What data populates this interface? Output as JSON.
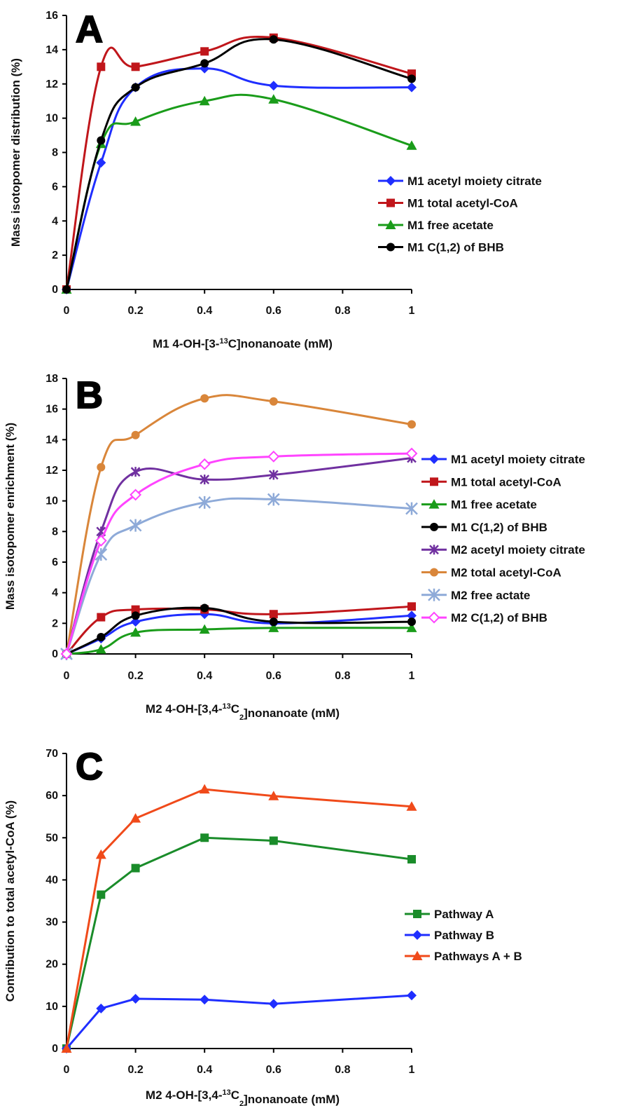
{
  "chart_data": [
    {
      "type": "line",
      "panel_label": "A",
      "xlabel": "M1  4-OH-[3-13C]nonanoate (mM)",
      "xlabel_parts": [
        "M1  4-OH-[3-",
        "13",
        "C]nonanoate (mM)"
      ],
      "ylabel": "Mass isotopomer distribution (%)",
      "xlim": [
        0,
        1
      ],
      "ylim": [
        0,
        16
      ],
      "x_ticks": [
        "0",
        "0.2",
        "0.4",
        "0.6",
        "0.8",
        "1"
      ],
      "y_ticks": [
        "0",
        "2",
        "4",
        "6",
        "8",
        "10",
        "12",
        "14",
        "16"
      ],
      "x": [
        0,
        0.1,
        0.2,
        0.4,
        0.6,
        1
      ],
      "grid": false,
      "legend_position": "right",
      "smooth": true,
      "series": [
        {
          "name": "M1 acetyl moiety citrate",
          "color": "#1f2eff",
          "marker": "diamond",
          "values": [
            0,
            7.4,
            11.8,
            12.9,
            11.9,
            11.8
          ]
        },
        {
          "name": "M1 total acetyl-CoA",
          "color": "#c0161b",
          "marker": "square",
          "values": [
            0,
            13.0,
            13.0,
            13.9,
            14.7,
            12.6
          ]
        },
        {
          "name": "M1 free acetate",
          "color": "#1a9c1a",
          "marker": "triangle",
          "values": [
            0,
            8.5,
            9.8,
            11.0,
            11.1,
            8.4
          ]
        },
        {
          "name": "M1 C(1,2) of BHB",
          "color": "#000000",
          "marker": "circle",
          "values": [
            0,
            8.7,
            11.8,
            13.2,
            14.6,
            12.3
          ]
        }
      ]
    },
    {
      "type": "line",
      "panel_label": "B",
      "xlabel": "M2  4-OH-[3,4-13C2]nonanoate (mM)",
      "xlabel_parts": [
        "M2  4-OH-[3,4-",
        "13",
        "C",
        "2",
        "]nonanoate (mM)"
      ],
      "ylabel": "Mass isotopomer enrichment (%)",
      "xlim": [
        0,
        1
      ],
      "ylim": [
        0,
        18
      ],
      "x_ticks": [
        "0",
        "0.2",
        "0.4",
        "0.6",
        "0.8",
        "1"
      ],
      "y_ticks": [
        "0",
        "2",
        "4",
        "6",
        "8",
        "10",
        "12",
        "14",
        "16",
        "18"
      ],
      "x": [
        0,
        0.1,
        0.2,
        0.4,
        0.6,
        1
      ],
      "grid": false,
      "legend_position": "right",
      "smooth": true,
      "series": [
        {
          "name": "M1 acetyl moiety citrate",
          "color": "#1f2eff",
          "marker": "diamond",
          "values": [
            0,
            1.0,
            2.1,
            2.6,
            2.0,
            2.5
          ]
        },
        {
          "name": "M1 total acetyl-CoA",
          "color": "#c0161b",
          "marker": "square",
          "values": [
            0,
            2.4,
            2.9,
            2.9,
            2.6,
            3.1
          ]
        },
        {
          "name": "M1 free acetate",
          "color": "#1a9c1a",
          "marker": "triangle",
          "values": [
            0,
            0.3,
            1.4,
            1.6,
            1.7,
            1.7
          ]
        },
        {
          "name": "M1 C(1,2) of BHB",
          "color": "#000000",
          "marker": "circle",
          "values": [
            0,
            1.1,
            2.5,
            3.0,
            2.1,
            2.1
          ]
        },
        {
          "name": "M2 acetyl moiety citrate",
          "color": "#7030a0",
          "marker": "star",
          "values": [
            0,
            8.0,
            11.9,
            11.4,
            11.7,
            12.8
          ]
        },
        {
          "name": "M2 total acetyl-CoA",
          "color": "#d9863a",
          "marker": "circle",
          "values": [
            0,
            12.2,
            14.3,
            16.7,
            16.5,
            15.0
          ]
        },
        {
          "name": "M2 free actate",
          "color": "#8eaad8",
          "marker": "asterisk",
          "values": [
            0,
            6.5,
            8.4,
            9.9,
            10.1,
            9.5
          ]
        },
        {
          "name": "M2 C(1,2) of BHB",
          "color": "#ff44ff",
          "marker": "open-diamond",
          "values": [
            0,
            7.4,
            10.4,
            12.4,
            12.9,
            13.1
          ]
        }
      ]
    },
    {
      "type": "line",
      "panel_label": "C",
      "xlabel": "M2  4-OH-[3,4-13C2]nonanoate (mM)",
      "xlabel_parts": [
        "M2  4-OH-[3,4-",
        "13",
        "C",
        "2",
        "]nonanoate (mM)"
      ],
      "ylabel": "Contribution to total acetyl-CoA (%)",
      "xlim": [
        0,
        1
      ],
      "ylim": [
        0,
        70
      ],
      "x_ticks": [
        "0",
        "0.2",
        "0.4",
        "0.6",
        "0.8",
        "1"
      ],
      "y_ticks": [
        "0",
        "10",
        "20",
        "30",
        "40",
        "50",
        "60",
        "70"
      ],
      "x": [
        0,
        0.1,
        0.2,
        0.4,
        0.6,
        1
      ],
      "grid": false,
      "legend_position": "right",
      "smooth": false,
      "series": [
        {
          "name": "Pathway A",
          "color": "#1a8c2a",
          "marker": "square",
          "values": [
            0,
            36.5,
            42.8,
            50.0,
            49.3,
            44.9
          ]
        },
        {
          "name": "Pathway B",
          "color": "#1f2eff",
          "marker": "diamond",
          "values": [
            0,
            9.5,
            11.8,
            11.6,
            10.6,
            12.6
          ]
        },
        {
          "name": "Pathways A + B",
          "color": "#f04a1a",
          "marker": "triangle",
          "values": [
            0,
            46.0,
            54.6,
            61.5,
            59.9,
            57.4
          ]
        }
      ]
    }
  ]
}
